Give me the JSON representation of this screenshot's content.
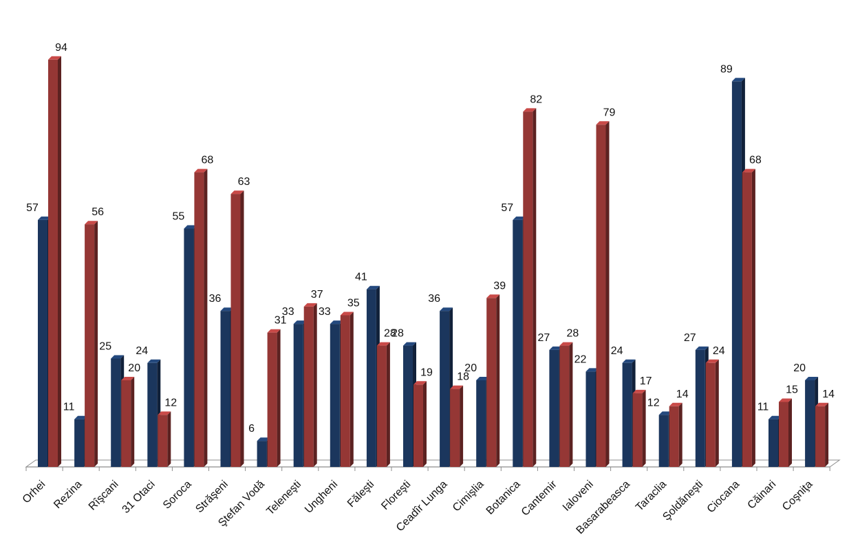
{
  "chart_data": {
    "type": "bar",
    "style": "3d-clustered-column",
    "categories": [
      "Orhei",
      "Rezina",
      "Rîşcani",
      "31 Otaci",
      "Soroca",
      "Străşeni",
      "Ştefan Vodă",
      "Teleneşti",
      "Ungheni",
      "Făleşti",
      "Floreşti",
      "Ceadîr Lunga",
      "Cimişlia",
      "Botanica",
      "Cantemir",
      "Ialoveni",
      "Basarabeasca",
      "Taraclia",
      "Şoldăneşti",
      "Ciocana",
      "Căinari",
      "Coşniţa"
    ],
    "series": [
      {
        "values": [
          57,
          11,
          25,
          24,
          55,
          36,
          6,
          33,
          33,
          41,
          28,
          36,
          20,
          57,
          27,
          22,
          24,
          12,
          27,
          89,
          11,
          20
        ],
        "color": "#1b365d"
      },
      {
        "values": [
          94,
          56,
          20,
          12,
          68,
          63,
          31,
          37,
          35,
          28,
          19,
          18,
          39,
          82,
          28,
          79,
          17,
          14,
          24,
          68,
          15,
          14
        ],
        "color": "#953735"
      }
    ],
    "ylim": [
      0,
      100
    ],
    "grid": false,
    "legend": "none",
    "data_labels": true
  }
}
